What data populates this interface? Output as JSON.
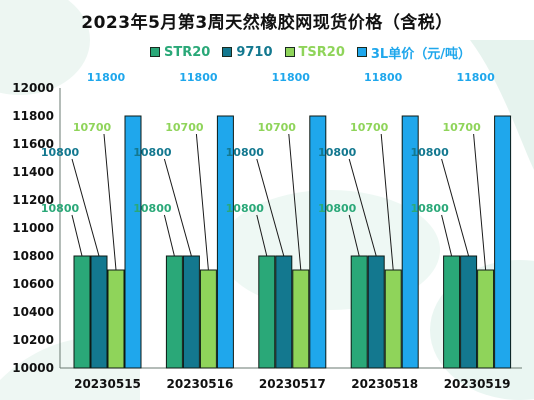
{
  "title": "2023年5月第3周天然橡胶网现货价格（含税）",
  "colors": {
    "STR20": "#2aa878",
    "9710": "#13788f",
    "TSR20": "#8fd45a",
    "3L": "#1fa7ec"
  },
  "chart_data": {
    "type": "bar",
    "title": "2023年5月第3周天然橡胶网现货价格（含税）",
    "categories": [
      "20230515",
      "20230516",
      "20230517",
      "20230518",
      "20230519"
    ],
    "series": [
      {
        "name": "STR20",
        "values": [
          10800,
          10800,
          10800,
          10800,
          10800
        ]
      },
      {
        "name": "9710",
        "values": [
          10800,
          10800,
          10800,
          10800,
          10800
        ]
      },
      {
        "name": "TSR20",
        "values": [
          10700,
          10700,
          10700,
          10700,
          10700
        ]
      },
      {
        "name": "3L单价（元/吨）",
        "values": [
          11800,
          11800,
          11800,
          11800,
          11800
        ]
      }
    ],
    "yticks": [
      "10000",
      "10200",
      "10400",
      "10600",
      "10800",
      "11000",
      "11200",
      "11400",
      "11600",
      "11800",
      "12000"
    ],
    "ylim": [
      10000,
      12000
    ],
    "legend_position": "top"
  }
}
